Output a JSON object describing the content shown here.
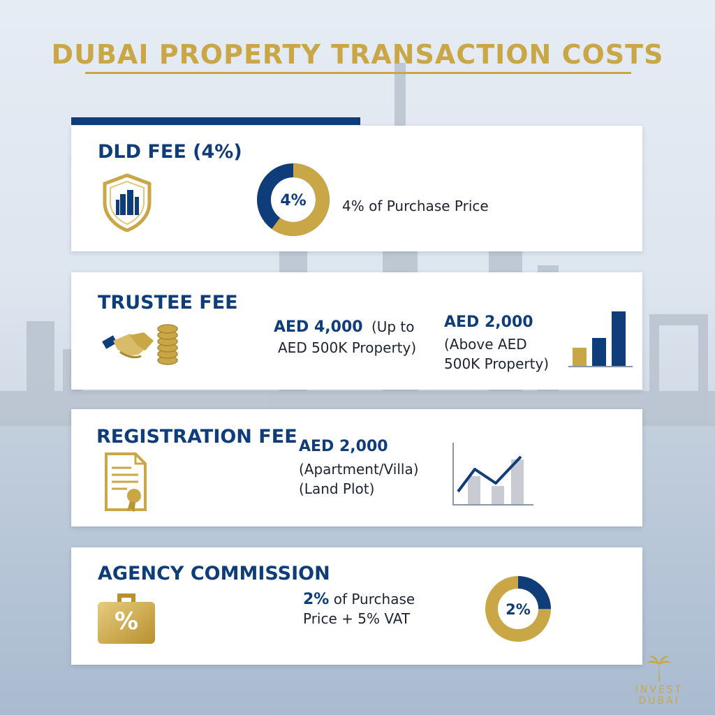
{
  "title": "DUBAI PROPERTY TRANSACTION COSTS",
  "colors": {
    "gold": "#c9a646",
    "navy": "#0f3d7a"
  },
  "cards": [
    {
      "title": "DLD FEE (4%)",
      "icon": "shield-building-icon",
      "donut_label": "4%",
      "donut_fraction": 0.6,
      "description": "4% of Purchase Price"
    },
    {
      "title": "TRUSTEE FEE",
      "icon": "handshake-coins-icon",
      "left_amount": "AED 4,000",
      "left_note_a": "(Up to",
      "left_note_b": "AED 500K Property)",
      "right_amount": "AED 2,000",
      "right_note_a": "(Above AED",
      "right_note_b": "500K Property)",
      "chart_icon": "bar-chart-icon"
    },
    {
      "title": "REGISTRATION FEE",
      "icon": "certificate-icon",
      "amount": "AED 2,000",
      "line1": "(Apartment/Villa)",
      "line2": "(Land Plot)",
      "chart_icon": "line-chart-icon"
    },
    {
      "title": "AGENCY COMMISSION",
      "icon": "briefcase-percent-icon",
      "briefcase_symbol": "%",
      "amount": "2%",
      "text_a": " of Purchase",
      "text_b": "Price + 5% VAT",
      "donut_label": "2%",
      "donut_fraction": 0.25
    }
  ],
  "logo": {
    "icon": "palm-tree-icon",
    "line1": "INVEST",
    "line2": "DUBAI"
  }
}
